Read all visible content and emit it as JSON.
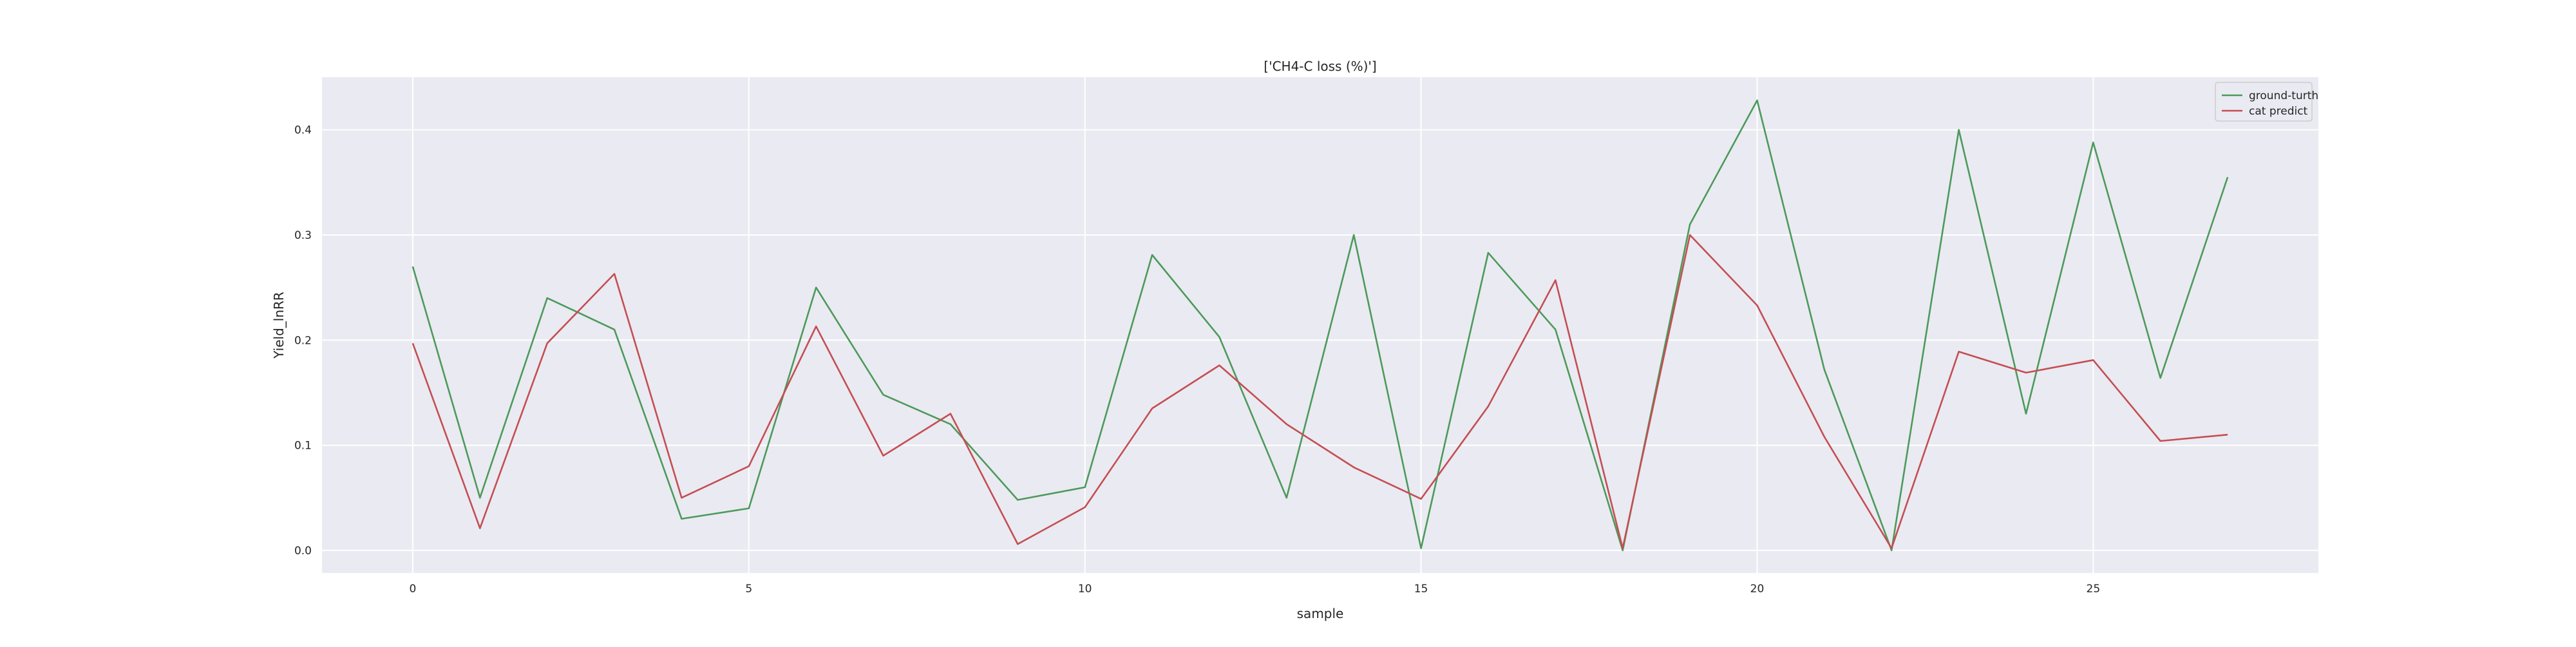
{
  "chart_data": {
    "type": "line",
    "title": "['CH4-C loss (%)']",
    "xlabel": "sample",
    "ylabel": "Yield_lnRR",
    "xlim": [
      -1.35,
      28.35
    ],
    "ylim": [
      -0.0215,
      0.45
    ],
    "x_ticks": [
      0,
      5,
      10,
      15,
      20,
      25
    ],
    "y_ticks": [
      0.0,
      0.1,
      0.2,
      0.3,
      0.4
    ],
    "y_tick_labels": [
      "0.0",
      "0.1",
      "0.2",
      "0.3",
      "0.4"
    ],
    "grid": true,
    "legend_position": "top-right",
    "background_color": "#eaeaf2",
    "grid_color": "#ffffff",
    "series": [
      {
        "name": "ground-turth",
        "color": "#4c9a5a",
        "x": [
          0,
          1,
          2,
          3,
          4,
          5,
          6,
          7,
          8,
          9,
          10,
          11,
          12,
          13,
          14,
          15,
          16,
          17,
          18,
          19,
          20,
          21,
          22,
          23,
          24,
          25,
          26,
          27
        ],
        "values": [
          0.27,
          0.05,
          0.24,
          0.21,
          0.03,
          0.04,
          0.25,
          0.148,
          0.12,
          0.048,
          0.06,
          0.281,
          0.203,
          0.05,
          0.3,
          0.002,
          0.283,
          0.21,
          0.0,
          0.31,
          0.428,
          0.172,
          0.0,
          0.4,
          0.13,
          0.388,
          0.164,
          0.355
        ]
      },
      {
        "name": "cat predict",
        "color": "#c44e52",
        "x": [
          0,
          1,
          2,
          3,
          4,
          5,
          6,
          7,
          8,
          9,
          10,
          11,
          12,
          13,
          14,
          15,
          16,
          17,
          18,
          19,
          20,
          21,
          22,
          23,
          24,
          25,
          26,
          27
        ],
        "values": [
          0.197,
          0.021,
          0.197,
          0.263,
          0.05,
          0.08,
          0.213,
          0.09,
          0.13,
          0.006,
          0.041,
          0.135,
          0.176,
          0.12,
          0.079,
          0.049,
          0.137,
          0.257,
          0.002,
          0.3,
          0.233,
          0.108,
          0.002,
          0.189,
          0.169,
          0.181,
          0.104,
          0.11
        ]
      }
    ]
  }
}
